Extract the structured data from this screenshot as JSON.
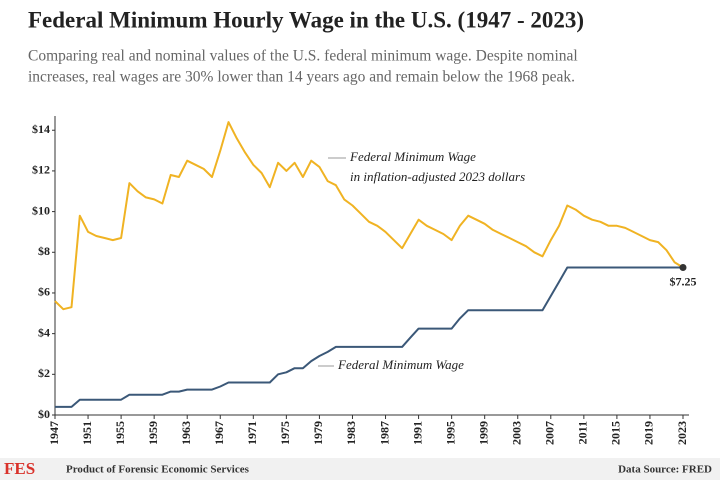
{
  "chart_data": {
    "type": "line",
    "title": "Federal Minimum Hourly Wage in the U.S. (1947 - 2023)",
    "subtitle": [
      "Comparing real and nominal values of the U.S. federal minimum wage. Despite nominal",
      "increases, real wages are 30% lower than 14 years ago and remain below the 1968 peak."
    ],
    "x": [
      1947,
      1948,
      1949,
      1950,
      1951,
      1952,
      1953,
      1954,
      1955,
      1956,
      1957,
      1958,
      1959,
      1960,
      1961,
      1962,
      1963,
      1964,
      1965,
      1966,
      1967,
      1968,
      1969,
      1970,
      1971,
      1972,
      1973,
      1974,
      1975,
      1976,
      1977,
      1978,
      1979,
      1980,
      1981,
      1982,
      1983,
      1984,
      1985,
      1986,
      1987,
      1988,
      1989,
      1990,
      1991,
      1992,
      1993,
      1994,
      1995,
      1996,
      1997,
      1998,
      1999,
      2000,
      2001,
      2002,
      2003,
      2004,
      2005,
      2006,
      2007,
      2008,
      2009,
      2010,
      2011,
      2012,
      2013,
      2014,
      2015,
      2016,
      2017,
      2018,
      2019,
      2020,
      2021,
      2022,
      2023
    ],
    "series": [
      {
        "name": "Federal Minimum Wage in inflation-adjusted 2023 dollars",
        "label_lines": [
          "Federal Minimum Wage",
          "in inflation-adjusted 2023 dollars"
        ],
        "color": "#f0b323",
        "values": [
          5.6,
          5.2,
          5.3,
          9.8,
          9.0,
          8.8,
          8.7,
          8.6,
          8.7,
          11.4,
          11.0,
          10.7,
          10.6,
          10.4,
          11.8,
          11.7,
          12.5,
          12.3,
          12.1,
          11.7,
          13.0,
          14.4,
          13.6,
          12.9,
          12.3,
          11.9,
          11.2,
          12.4,
          12.0,
          12.4,
          11.7,
          12.5,
          12.2,
          11.5,
          11.3,
          10.6,
          10.3,
          9.9,
          9.5,
          9.3,
          9.0,
          8.6,
          8.2,
          8.9,
          9.6,
          9.3,
          9.1,
          8.9,
          8.6,
          9.3,
          9.8,
          9.6,
          9.4,
          9.1,
          8.9,
          8.7,
          8.5,
          8.3,
          8.0,
          7.8,
          8.6,
          9.3,
          10.3,
          10.1,
          9.8,
          9.6,
          9.5,
          9.3,
          9.3,
          9.2,
          9.0,
          8.8,
          8.6,
          8.5,
          8.1,
          7.5,
          7.25
        ]
      },
      {
        "name": "Federal Minimum Wage",
        "color": "#3b5878",
        "values": [
          0.4,
          0.4,
          0.4,
          0.75,
          0.75,
          0.75,
          0.75,
          0.75,
          0.75,
          1.0,
          1.0,
          1.0,
          1.0,
          1.0,
          1.15,
          1.15,
          1.25,
          1.25,
          1.25,
          1.25,
          1.4,
          1.6,
          1.6,
          1.6,
          1.6,
          1.6,
          1.6,
          2.0,
          2.1,
          2.3,
          2.3,
          2.65,
          2.9,
          3.1,
          3.35,
          3.35,
          3.35,
          3.35,
          3.35,
          3.35,
          3.35,
          3.35,
          3.35,
          3.8,
          4.25,
          4.25,
          4.25,
          4.25,
          4.25,
          4.75,
          5.15,
          5.15,
          5.15,
          5.15,
          5.15,
          5.15,
          5.15,
          5.15,
          5.15,
          5.15,
          5.85,
          6.55,
          7.25,
          7.25,
          7.25,
          7.25,
          7.25,
          7.25,
          7.25,
          7.25,
          7.25,
          7.25,
          7.25,
          7.25,
          7.25,
          7.25,
          7.25
        ],
        "value_labels": [
          null,
          null,
          null,
          null,
          null,
          null,
          null,
          null,
          null,
          null,
          null,
          null,
          null,
          null,
          null,
          null,
          null,
          null,
          null,
          null,
          null,
          null,
          null,
          null,
          null,
          null,
          null,
          null,
          null,
          null,
          null,
          null,
          null,
          null,
          null,
          null,
          null,
          null,
          null,
          null,
          null,
          null,
          null,
          null,
          null,
          null,
          null,
          null,
          null,
          null,
          null,
          null,
          null,
          null,
          null,
          null,
          null,
          null,
          null,
          null,
          null,
          null,
          null,
          null,
          null,
          null,
          null,
          null,
          null,
          null,
          null,
          null,
          null,
          null,
          null,
          null,
          "$7.25"
        ]
      }
    ],
    "xlim": [
      1947,
      2023
    ],
    "xticks": [
      1947,
      1951,
      1955,
      1959,
      1963,
      1967,
      1971,
      1975,
      1979,
      1983,
      1987,
      1991,
      1995,
      1999,
      2003,
      2007,
      2011,
      2015,
      2019,
      2023
    ],
    "ylim": [
      0,
      14.7
    ],
    "yticks": [
      {
        "value": 0,
        "label": "$0"
      },
      {
        "value": 2,
        "label": "$2"
      },
      {
        "value": 4,
        "label": "$4"
      },
      {
        "value": 6,
        "label": "$6"
      },
      {
        "value": 8,
        "label": "$8"
      },
      {
        "value": 10,
        "label": "$10"
      },
      {
        "value": 12,
        "label": "$12"
      },
      {
        "value": 14,
        "label": "$14"
      }
    ],
    "grid": false,
    "footer": {
      "logo": "FES",
      "credit": "Product of Forensic Economic Services",
      "source": "Data Source: FRED"
    }
  }
}
